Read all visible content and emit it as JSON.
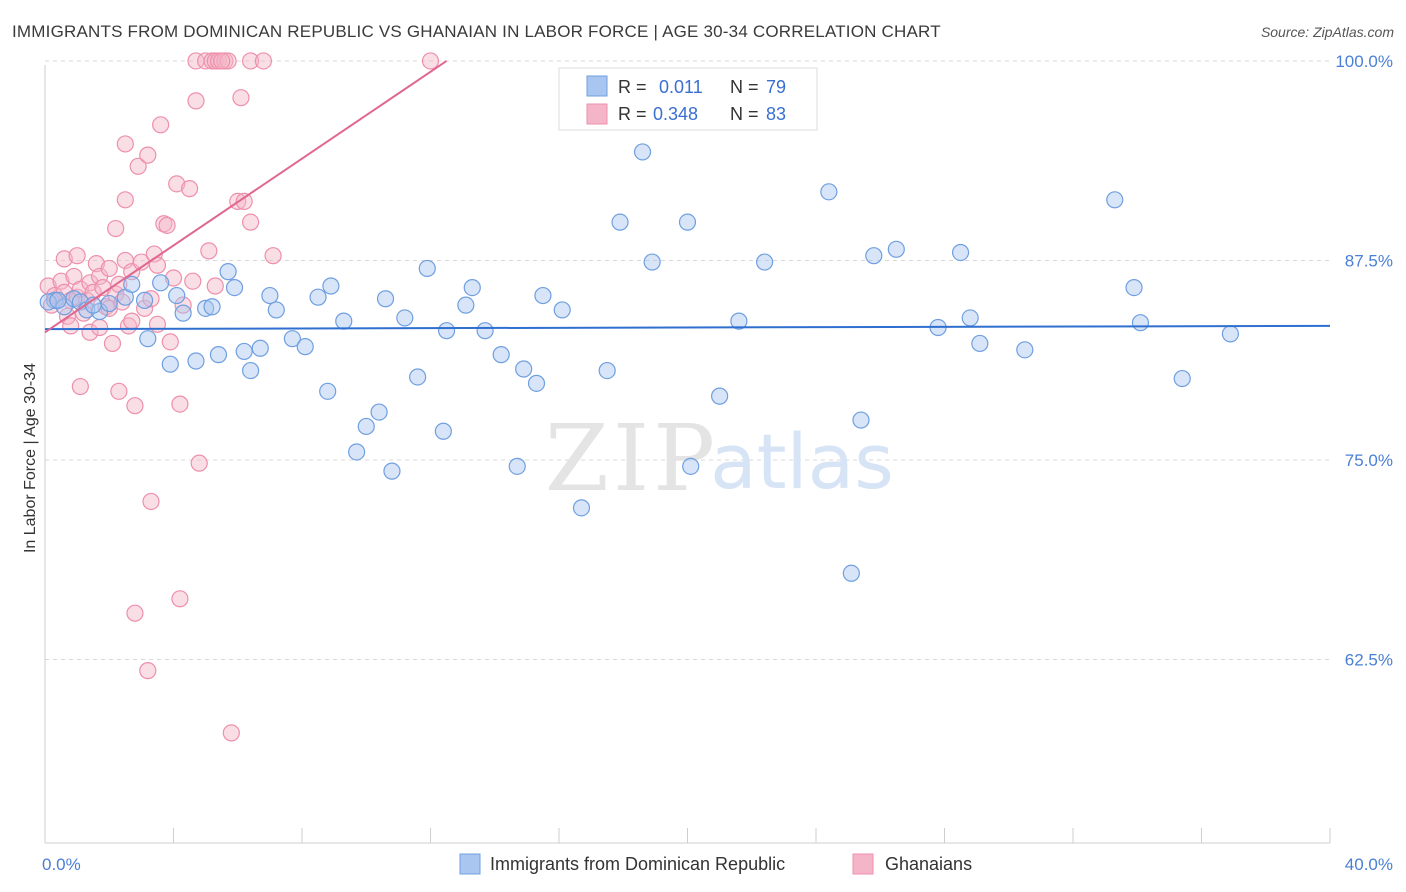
{
  "title": "IMMIGRANTS FROM DOMINICAN REPUBLIC VS GHANAIAN IN LABOR FORCE | AGE 30-34 CORRELATION CHART",
  "source": "Source: ZipAtlas.com",
  "watermark": {
    "zip": "ZIP",
    "atlas": "atlas"
  },
  "colors": {
    "blue_fill": "#a9c6f0",
    "blue_stroke": "#6f9fe0",
    "blue_line": "#2f6fcf",
    "pink_fill": "#f5b5c8",
    "pink_stroke": "#ee8fab",
    "pink_line": "#e06890",
    "tick_color": "#4a7fd6",
    "grid": "#d8d8d8"
  },
  "legend": {
    "rows": [
      {
        "r_label": "R =",
        "r_value": "0.011",
        "n_label": "N =",
        "n_value": "79"
      },
      {
        "r_label": "R =",
        "r_value": "0.348",
        "n_label": "N =",
        "n_value": "83"
      }
    ]
  },
  "chart_data": {
    "type": "scatter",
    "title": "IMMIGRANTS FROM DOMINICAN REPUBLIC VS GHANAIAN IN LABOR FORCE | AGE 30-34 CORRELATION CHART",
    "xlabel": "",
    "ylabel": "In Labor Force | Age 30-34",
    "xlim": [
      0,
      40
    ],
    "ylim": [
      51,
      101
    ],
    "x_tick_labels": [
      "0.0%",
      "40.0%"
    ],
    "y_ticks": [
      62.5,
      75.0,
      87.5,
      100.0
    ],
    "y_tick_labels": [
      "62.5%",
      "75.0%",
      "87.5%",
      "100.0%"
    ],
    "series": [
      {
        "name": "Immigrants from Dominican Republic",
        "color": "#a9c6f0",
        "trend": {
          "x": [
            0,
            40
          ],
          "y": [
            83.2,
            83.4
          ]
        },
        "points": [
          [
            0.3,
            85.0
          ],
          [
            0.6,
            84.6
          ],
          [
            0.9,
            85.1
          ],
          [
            1.1,
            84.9
          ],
          [
            1.3,
            84.4
          ],
          [
            1.7,
            84.3
          ],
          [
            2.0,
            84.8
          ],
          [
            2.5,
            85.2
          ],
          [
            2.7,
            86.0
          ],
          [
            3.1,
            85.0
          ],
          [
            3.2,
            82.6
          ],
          [
            3.6,
            86.1
          ],
          [
            3.9,
            81.0
          ],
          [
            4.1,
            85.3
          ],
          [
            4.3,
            84.2
          ],
          [
            4.7,
            81.2
          ],
          [
            5.0,
            84.5
          ],
          [
            5.2,
            84.6
          ],
          [
            5.4,
            81.6
          ],
          [
            5.7,
            86.8
          ],
          [
            5.9,
            85.8
          ],
          [
            6.2,
            81.8
          ],
          [
            6.4,
            80.6
          ],
          [
            6.7,
            82.0
          ],
          [
            7.0,
            85.3
          ],
          [
            7.2,
            84.4
          ],
          [
            7.7,
            82.6
          ],
          [
            8.1,
            82.1
          ],
          [
            8.5,
            85.2
          ],
          [
            8.8,
            79.3
          ],
          [
            8.9,
            85.9
          ],
          [
            9.3,
            83.7
          ],
          [
            9.7,
            75.5
          ],
          [
            10.0,
            77.1
          ],
          [
            10.4,
            78.0
          ],
          [
            10.6,
            85.1
          ],
          [
            10.8,
            74.3
          ],
          [
            11.2,
            83.9
          ],
          [
            11.6,
            80.2
          ],
          [
            11.9,
            87.0
          ],
          [
            12.4,
            76.8
          ],
          [
            12.5,
            83.1
          ],
          [
            13.1,
            84.7
          ],
          [
            13.3,
            85.8
          ],
          [
            13.7,
            83.1
          ],
          [
            14.2,
            81.6
          ],
          [
            14.7,
            74.6
          ],
          [
            14.9,
            80.7
          ],
          [
            15.3,
            79.8
          ],
          [
            15.5,
            85.3
          ],
          [
            16.1,
            84.4
          ],
          [
            16.7,
            72.0
          ],
          [
            17.5,
            80.6
          ],
          [
            17.9,
            89.9
          ],
          [
            18.6,
            94.3
          ],
          [
            18.9,
            87.4
          ],
          [
            20.0,
            89.9
          ],
          [
            20.1,
            74.6
          ],
          [
            21.0,
            79.0
          ],
          [
            21.6,
            83.7
          ],
          [
            22.4,
            87.4
          ],
          [
            24.4,
            91.8
          ],
          [
            25.1,
            67.9
          ],
          [
            25.4,
            77.5
          ],
          [
            25.8,
            87.8
          ],
          [
            26.5,
            88.2
          ],
          [
            27.8,
            83.3
          ],
          [
            28.5,
            88.0
          ],
          [
            28.8,
            83.9
          ],
          [
            29.1,
            82.3
          ],
          [
            30.5,
            81.9
          ],
          [
            33.3,
            91.3
          ],
          [
            33.9,
            85.8
          ],
          [
            34.1,
            83.6
          ],
          [
            35.4,
            80.1
          ],
          [
            36.9,
            82.9
          ],
          [
            0.1,
            84.9
          ],
          [
            0.4,
            85.0
          ],
          [
            1.5,
            84.7
          ]
        ]
      },
      {
        "name": "Ghanaians",
        "color": "#f5b5c8",
        "trend": {
          "x": [
            0,
            12.5
          ],
          "y": [
            83.0,
            100.0
          ]
        },
        "points": [
          [
            0.1,
            85.9
          ],
          [
            0.2,
            84.7
          ],
          [
            0.3,
            85.3
          ],
          [
            0.4,
            85.0
          ],
          [
            0.5,
            86.2
          ],
          [
            0.6,
            85.5
          ],
          [
            0.6,
            87.6
          ],
          [
            0.7,
            84.0
          ],
          [
            0.8,
            85.0
          ],
          [
            0.8,
            83.4
          ],
          [
            0.9,
            86.5
          ],
          [
            1.0,
            85.2
          ],
          [
            1.0,
            87.8
          ],
          [
            1.1,
            85.7
          ],
          [
            1.1,
            79.6
          ],
          [
            1.2,
            84.2
          ],
          [
            1.3,
            85.0
          ],
          [
            1.4,
            83.0
          ],
          [
            1.4,
            86.1
          ],
          [
            1.5,
            85.5
          ],
          [
            1.6,
            87.3
          ],
          [
            1.7,
            86.5
          ],
          [
            1.7,
            83.3
          ],
          [
            1.8,
            85.8
          ],
          [
            1.9,
            84.6
          ],
          [
            2.0,
            84.5
          ],
          [
            2.0,
            87.0
          ],
          [
            2.1,
            82.3
          ],
          [
            2.2,
            89.5
          ],
          [
            2.2,
            85.4
          ],
          [
            2.3,
            79.3
          ],
          [
            2.3,
            86.0
          ],
          [
            2.4,
            84.9
          ],
          [
            2.5,
            91.3
          ],
          [
            2.5,
            94.8
          ],
          [
            2.5,
            87.5
          ],
          [
            2.6,
            83.4
          ],
          [
            2.7,
            83.7
          ],
          [
            2.7,
            86.8
          ],
          [
            2.8,
            78.4
          ],
          [
            2.8,
            65.4
          ],
          [
            2.9,
            93.4
          ],
          [
            3.0,
            87.4
          ],
          [
            3.1,
            84.5
          ],
          [
            3.2,
            94.1
          ],
          [
            3.2,
            61.8
          ],
          [
            3.3,
            85.1
          ],
          [
            3.3,
            72.4
          ],
          [
            3.4,
            87.9
          ],
          [
            3.5,
            83.5
          ],
          [
            3.5,
            87.2
          ],
          [
            3.6,
            96.0
          ],
          [
            3.7,
            89.8
          ],
          [
            3.8,
            89.7
          ],
          [
            3.9,
            82.4
          ],
          [
            4.0,
            86.4
          ],
          [
            4.1,
            92.3
          ],
          [
            4.2,
            78.5
          ],
          [
            4.2,
            66.3
          ],
          [
            4.3,
            84.7
          ],
          [
            4.5,
            92.0
          ],
          [
            4.6,
            86.2
          ],
          [
            4.7,
            97.5
          ],
          [
            4.7,
            100.0
          ],
          [
            4.8,
            74.8
          ],
          [
            5.0,
            100.0
          ],
          [
            5.1,
            88.1
          ],
          [
            5.2,
            100.0
          ],
          [
            5.3,
            100.0
          ],
          [
            5.3,
            85.9
          ],
          [
            5.4,
            100.0
          ],
          [
            5.6,
            100.0
          ],
          [
            5.7,
            100.0
          ],
          [
            5.8,
            57.9
          ],
          [
            6.0,
            91.2
          ],
          [
            6.1,
            97.7
          ],
          [
            6.2,
            91.2
          ],
          [
            6.4,
            100.0
          ],
          [
            6.4,
            89.9
          ],
          [
            6.8,
            100.0
          ],
          [
            7.1,
            87.8
          ],
          [
            12.0,
            100.0
          ],
          [
            5.5,
            100.0
          ]
        ]
      }
    ]
  },
  "bottom_legend": [
    {
      "label": "Immigrants from Dominican Republic"
    },
    {
      "label": "Ghanaians"
    }
  ]
}
